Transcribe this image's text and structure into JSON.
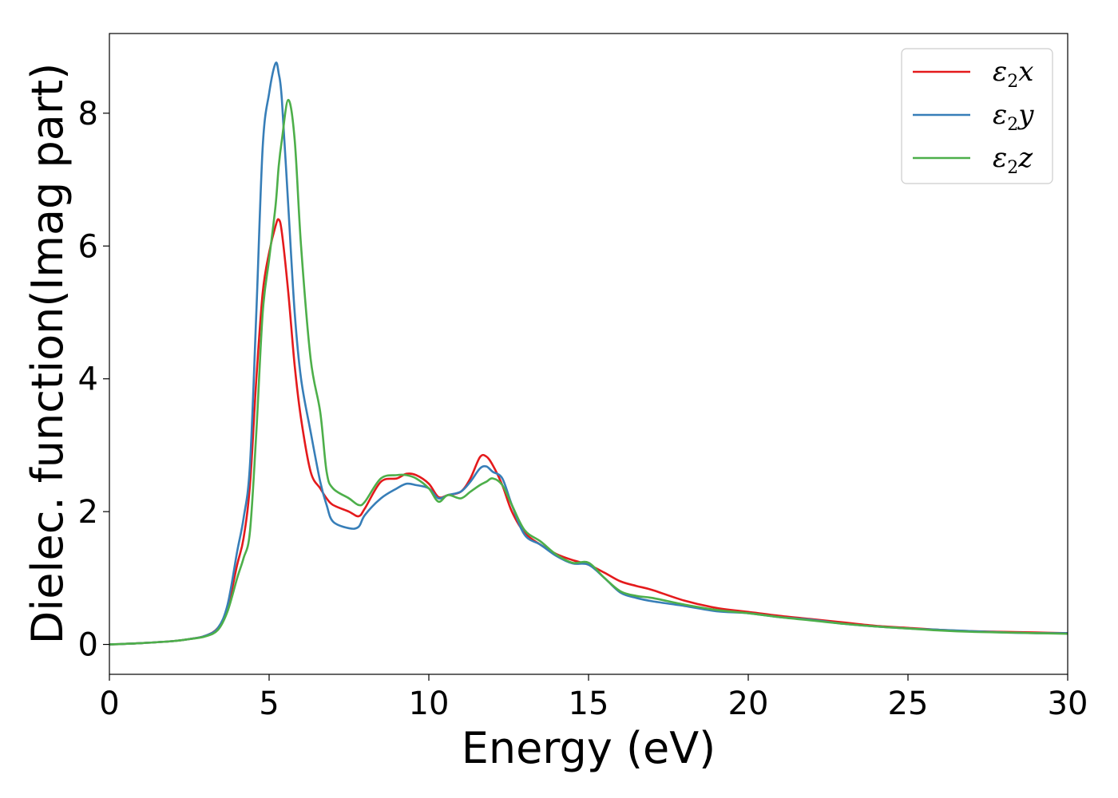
{
  "chart_data": {
    "type": "line",
    "xlabel": "Energy (eV)",
    "ylabel": "Dielec. function(Imag part)",
    "xlim": [
      0,
      30
    ],
    "ylim": [
      -0.45,
      9.2
    ],
    "xticks": [
      0,
      5,
      10,
      15,
      20,
      25,
      30
    ],
    "yticks": [
      0,
      2,
      4,
      6,
      8
    ],
    "grid": false,
    "legend_position": "top-right",
    "x": [
      0,
      1,
      2,
      2.5,
      3,
      3.4,
      3.7,
      4.0,
      4.2,
      4.4,
      4.6,
      4.8,
      5.0,
      5.2,
      5.3,
      5.4,
      5.6,
      5.8,
      6.0,
      6.3,
      6.6,
      6.8,
      7.0,
      7.5,
      7.8,
      8.0,
      8.5,
      9.0,
      9.3,
      9.6,
      10.0,
      10.3,
      10.6,
      11.0,
      11.3,
      11.6,
      11.8,
      12.0,
      12.3,
      12.6,
      13.0,
      13.5,
      14.0,
      14.5,
      15.0,
      15.5,
      16.0,
      16.5,
      17.0,
      18.0,
      19.0,
      20.0,
      21.0,
      22.0,
      23.0,
      24.0,
      25.0,
      26.0,
      27.0,
      28.0,
      29.0,
      30.0
    ],
    "series": [
      {
        "name": "x",
        "color": "#e41a1c",
        "values": [
          0,
          0.02,
          0.05,
          0.08,
          0.13,
          0.25,
          0.55,
          1.2,
          1.6,
          2.4,
          4.0,
          5.3,
          5.9,
          6.3,
          6.4,
          6.2,
          5.3,
          4.2,
          3.4,
          2.6,
          2.35,
          2.2,
          2.1,
          2.0,
          1.93,
          2.05,
          2.45,
          2.5,
          2.57,
          2.55,
          2.42,
          2.22,
          2.25,
          2.3,
          2.5,
          2.82,
          2.83,
          2.7,
          2.4,
          2.0,
          1.68,
          1.5,
          1.36,
          1.27,
          1.2,
          1.08,
          0.95,
          0.88,
          0.82,
          0.66,
          0.55,
          0.49,
          0.43,
          0.38,
          0.33,
          0.28,
          0.25,
          0.22,
          0.2,
          0.19,
          0.18,
          0.17
        ]
      },
      {
        "name": "y",
        "color": "#377eb8",
        "values": [
          0,
          0.02,
          0.05,
          0.08,
          0.13,
          0.25,
          0.6,
          1.4,
          1.9,
          2.7,
          5.0,
          7.5,
          8.3,
          8.75,
          8.6,
          8.2,
          6.6,
          5.0,
          4.0,
          3.2,
          2.45,
          2.1,
          1.85,
          1.75,
          1.77,
          1.95,
          2.2,
          2.35,
          2.42,
          2.4,
          2.35,
          2.2,
          2.25,
          2.3,
          2.45,
          2.65,
          2.68,
          2.6,
          2.5,
          2.1,
          1.65,
          1.5,
          1.33,
          1.22,
          1.2,
          1.0,
          0.78,
          0.7,
          0.65,
          0.58,
          0.5,
          0.47,
          0.41,
          0.37,
          0.31,
          0.27,
          0.24,
          0.22,
          0.2,
          0.18,
          0.17,
          0.17
        ]
      },
      {
        "name": "z",
        "color": "#4daf4a",
        "values": [
          0,
          0.02,
          0.05,
          0.08,
          0.12,
          0.22,
          0.5,
          1.0,
          1.3,
          1.7,
          3.2,
          5.0,
          5.8,
          6.6,
          7.2,
          7.6,
          8.2,
          7.6,
          6.0,
          4.3,
          3.5,
          2.6,
          2.35,
          2.2,
          2.1,
          2.15,
          2.5,
          2.55,
          2.55,
          2.5,
          2.35,
          2.15,
          2.25,
          2.2,
          2.3,
          2.4,
          2.45,
          2.5,
          2.4,
          2.1,
          1.72,
          1.55,
          1.35,
          1.23,
          1.23,
          1.0,
          0.8,
          0.73,
          0.7,
          0.6,
          0.52,
          0.47,
          0.41,
          0.36,
          0.31,
          0.27,
          0.24,
          0.21,
          0.19,
          0.18,
          0.17,
          0.16
        ]
      }
    ]
  }
}
